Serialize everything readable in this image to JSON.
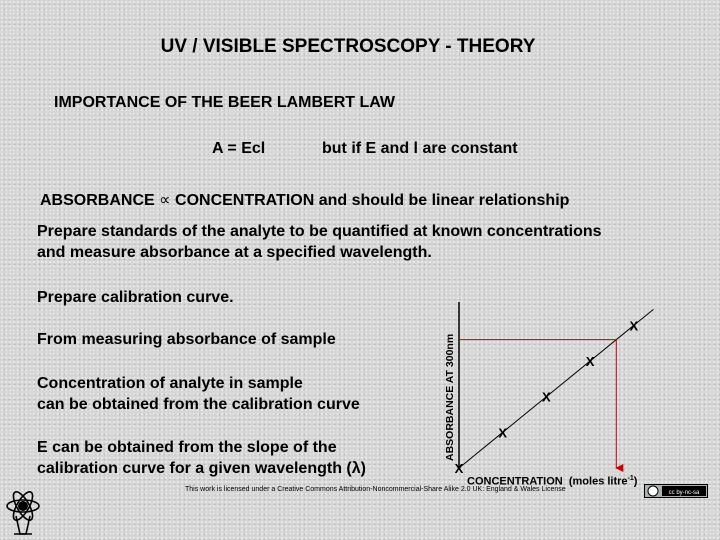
{
  "slide": {
    "title": "UV / VISIBLE SPECTROSCOPY - THEORY",
    "subtitle": "IMPORTANCE OF THE BEER LAMBERT LAW",
    "equation": "A = Ecl",
    "equation_note": "but if E and l are constant",
    "proportionality": {
      "left": "ABSORBANCE",
      "symbol": "∝",
      "right": "CONCENTRATION and should be linear relationship"
    },
    "paragraphs": {
      "prepare_standards_1": "Prepare standards of the analyte to be quantified at known concentrations",
      "prepare_standards_2": "and measure absorbance at a specified wavelength.",
      "prepare_curve": "Prepare calibration curve.",
      "from_measuring": "From measuring absorbance of sample",
      "concentration_1": "Concentration of analyte in sample",
      "concentration_2": "can be obtained from the calibration curve",
      "slope_1": "E can be obtained from the slope of the",
      "slope_2": "calibration curve for a given wavelength (λ)"
    },
    "license": "This work is licensed under a Creative Commons Attribution-Noncommercial-Share Alike 2.0 UK: England & Wales License",
    "cc_badge_text": "cc by-nc-sa",
    "logo_icon": "chemistry-logo-icon"
  },
  "chart_data": {
    "type": "scatter",
    "xlabel": "CONCENTRATION",
    "xlabel_unit": "(moles litre",
    "xlabel_unit_sup": "-1",
    "xlabel_unit_end": ")",
    "ylabel": "ABSORBANCE AT 300nm",
    "marker": "X",
    "points": [
      [
        0,
        0
      ],
      [
        1,
        1
      ],
      [
        2,
        2
      ],
      [
        3,
        3
      ],
      [
        4,
        4
      ]
    ],
    "sample_point": [
      3.6,
      3.6
    ],
    "line_color": "#000000",
    "guide_color": "#cc0000",
    "xlim": [
      0,
      4.6
    ],
    "ylim": [
      0,
      4.6
    ]
  },
  "colors": {
    "background": "#d6d6d6",
    "text": "#000000",
    "guide": "#cc0000"
  }
}
